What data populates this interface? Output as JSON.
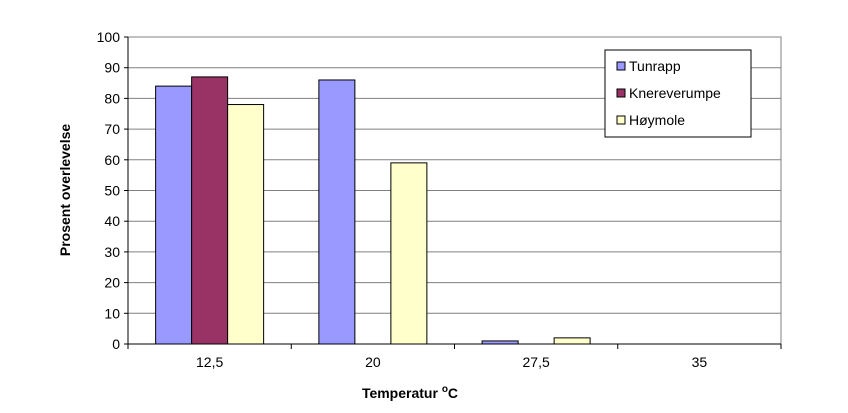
{
  "chart_data": {
    "type": "bar",
    "categories": [
      "12,5",
      "20",
      "27,5",
      "35"
    ],
    "series": [
      {
        "name": "Tunrapp",
        "values": [
          84,
          86,
          1,
          0
        ],
        "color": "#9999ff"
      },
      {
        "name": "Knereverumpe",
        "values": [
          87,
          0,
          0,
          0
        ],
        "color": "#993366"
      },
      {
        "name": "Høymole",
        "values": [
          78,
          59,
          2,
          0
        ],
        "color": "#ffffcc"
      }
    ],
    "xlabel_main": "Temperatur ",
    "xlabel_sup": "o",
    "xlabel_unit": "C",
    "ylabel": "Prosent overlevelse",
    "ylim": [
      0,
      100
    ],
    "yticks": [
      0,
      10,
      20,
      30,
      40,
      50,
      60,
      70,
      80,
      90,
      100
    ],
    "grid": true,
    "legend_position": "top-right"
  }
}
